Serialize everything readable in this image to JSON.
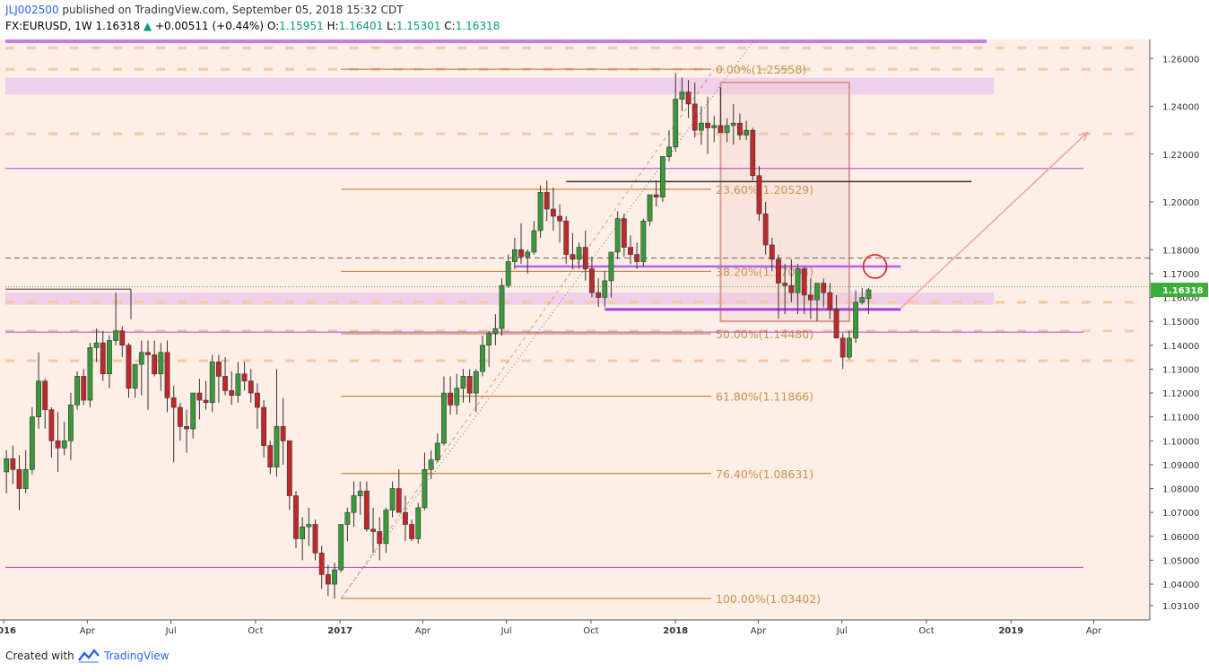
{
  "header": {
    "author": "JLJ002500",
    "published_text": "published on TradingView.com, September 05, 2018 15:32 CDT",
    "symbol": "FX:EURUSD, 1W",
    "last": "1.16318",
    "change": "+0.00511 (+0.44%)",
    "o_label": "O:",
    "o_value": "1.15951",
    "h_label": "H:",
    "h_value": "1.16401",
    "l_label": "L:",
    "l_value": "1.15301",
    "c_label": "C:",
    "c_value": "1.16318"
  },
  "footer": {
    "created_with": "Created with",
    "brand": "TradingView"
  },
  "colors": {
    "background": "#fdeee6",
    "up": "#3a9a3a",
    "down": "#c0282c",
    "fib": "#b8711e",
    "purple": "#b040d8",
    "accent": "#2962ff",
    "arrow": "#f4a0a0"
  },
  "chart_data": {
    "type": "candlestick",
    "symbol": "EURUSD",
    "timeframe": "1W",
    "ylim": [
      1.025,
      1.268
    ],
    "xlim": [
      "2015-12-28",
      "2019-06-01"
    ],
    "y_ticks": [
      "1.26000",
      "1.24000",
      "1.22000",
      "1.20000",
      "1.18000",
      "1.17000",
      "1.16000",
      "1.15000",
      "1.14000",
      "1.13000",
      "1.12000",
      "1.11000",
      "1.10000",
      "1.09000",
      "1.08000",
      "1.07000",
      "1.06000",
      "1.05000",
      "1.04000",
      "1.03100"
    ],
    "x_ticks": [
      {
        "date": "2016-01-01",
        "label": "2016",
        "bold": true
      },
      {
        "date": "2016-04-01",
        "label": "Apr",
        "bold": false
      },
      {
        "date": "2016-07-01",
        "label": "Jul",
        "bold": false
      },
      {
        "date": "2016-10-01",
        "label": "Oct",
        "bold": false
      },
      {
        "date": "2017-01-01",
        "label": "2017",
        "bold": true
      },
      {
        "date": "2017-04-01",
        "label": "Apr",
        "bold": false
      },
      {
        "date": "2017-07-01",
        "label": "Jul",
        "bold": false
      },
      {
        "date": "2017-10-01",
        "label": "Oct",
        "bold": false
      },
      {
        "date": "2018-01-01",
        "label": "2018",
        "bold": true
      },
      {
        "date": "2018-04-01",
        "label": "Apr",
        "bold": false
      },
      {
        "date": "2018-07-01",
        "label": "Jul",
        "bold": false
      },
      {
        "date": "2018-10-01",
        "label": "Oct",
        "bold": false
      },
      {
        "date": "2019-01-01",
        "label": "2019",
        "bold": true
      },
      {
        "date": "2019-04-01",
        "label": "Apr",
        "bold": false
      }
    ],
    "last_price": "1.16318",
    "candle_start": "2016-01-04",
    "candles": [
      [
        1.087,
        1.096,
        1.078,
        1.0925
      ],
      [
        1.0925,
        1.098,
        1.082,
        1.088
      ],
      [
        1.088,
        1.094,
        1.071,
        1.08
      ],
      [
        1.08,
        1.096,
        1.078,
        1.088
      ],
      [
        1.088,
        1.114,
        1.086,
        1.11
      ],
      [
        1.11,
        1.137,
        1.105,
        1.125
      ],
      [
        1.125,
        1.126,
        1.105,
        1.113
      ],
      [
        1.113,
        1.114,
        1.093,
        1.1
      ],
      [
        1.1,
        1.112,
        1.087,
        1.097
      ],
      [
        1.097,
        1.108,
        1.094,
        1.1
      ],
      [
        1.1,
        1.12,
        1.092,
        1.115
      ],
      [
        1.115,
        1.129,
        1.113,
        1.127
      ],
      [
        1.127,
        1.13,
        1.115,
        1.117
      ],
      [
        1.117,
        1.141,
        1.114,
        1.139
      ],
      [
        1.139,
        1.147,
        1.133,
        1.141
      ],
      [
        1.141,
        1.146,
        1.125,
        1.128
      ],
      [
        1.128,
        1.144,
        1.122,
        1.142
      ],
      [
        1.142,
        1.162,
        1.14,
        1.146
      ],
      [
        1.146,
        1.148,
        1.135,
        1.14
      ],
      [
        1.14,
        1.141,
        1.118,
        1.122
      ],
      [
        1.122,
        1.132,
        1.118,
        1.132
      ],
      [
        1.132,
        1.142,
        1.119,
        1.137
      ],
      [
        1.137,
        1.142,
        1.113,
        1.136
      ],
      [
        1.136,
        1.142,
        1.127,
        1.128
      ],
      [
        1.128,
        1.141,
        1.121,
        1.137
      ],
      [
        1.137,
        1.142,
        1.112,
        1.118
      ],
      [
        1.118,
        1.123,
        1.091,
        1.114
      ],
      [
        1.114,
        1.116,
        1.1,
        1.106
      ],
      [
        1.106,
        1.113,
        1.095,
        1.105
      ],
      [
        1.105,
        1.12,
        1.101,
        1.12
      ],
      [
        1.12,
        1.126,
        1.109,
        1.117
      ],
      [
        1.117,
        1.125,
        1.113,
        1.116
      ],
      [
        1.116,
        1.136,
        1.112,
        1.133
      ],
      [
        1.133,
        1.136,
        1.116,
        1.127
      ],
      [
        1.127,
        1.135,
        1.119,
        1.121
      ],
      [
        1.121,
        1.129,
        1.115,
        1.119
      ],
      [
        1.119,
        1.133,
        1.116,
        1.128
      ],
      [
        1.128,
        1.133,
        1.121,
        1.125
      ],
      [
        1.125,
        1.13,
        1.116,
        1.12
      ],
      [
        1.12,
        1.124,
        1.105,
        1.114
      ],
      [
        1.114,
        1.117,
        1.093,
        1.098
      ],
      [
        1.098,
        1.1,
        1.086,
        1.089
      ],
      [
        1.089,
        1.13,
        1.085,
        1.106
      ],
      [
        1.106,
        1.118,
        1.09,
        1.1
      ],
      [
        1.1,
        1.1,
        1.071,
        1.077
      ],
      [
        1.077,
        1.079,
        1.055,
        1.059
      ],
      [
        1.059,
        1.068,
        1.05,
        1.064
      ],
      [
        1.064,
        1.072,
        1.056,
        1.065
      ],
      [
        1.065,
        1.067,
        1.05,
        1.053
      ],
      [
        1.053,
        1.056,
        1.038,
        1.044
      ],
      [
        1.044,
        1.048,
        1.035,
        1.04
      ],
      [
        1.04,
        1.049,
        1.034,
        1.046
      ],
      [
        1.046,
        1.065,
        1.045,
        1.065
      ],
      [
        1.065,
        1.072,
        1.058,
        1.07
      ],
      [
        1.07,
        1.083,
        1.064,
        1.077
      ],
      [
        1.077,
        1.083,
        1.069,
        1.079
      ],
      [
        1.079,
        1.083,
        1.062,
        1.063
      ],
      [
        1.063,
        1.072,
        1.053,
        1.062
      ],
      [
        1.062,
        1.068,
        1.05,
        1.057
      ],
      [
        1.057,
        1.072,
        1.053,
        1.071
      ],
      [
        1.071,
        1.083,
        1.068,
        1.08
      ],
      [
        1.08,
        1.088,
        1.072,
        1.07
      ],
      [
        1.07,
        1.077,
        1.058,
        1.065
      ],
      [
        1.065,
        1.067,
        1.058,
        1.059
      ],
      [
        1.059,
        1.074,
        1.057,
        1.072
      ],
      [
        1.072,
        1.095,
        1.071,
        1.088
      ],
      [
        1.088,
        1.096,
        1.084,
        1.092
      ],
      [
        1.092,
        1.103,
        1.091,
        1.099
      ],
      [
        1.099,
        1.127,
        1.098,
        1.12
      ],
      [
        1.12,
        1.127,
        1.111,
        1.115
      ],
      [
        1.115,
        1.128,
        1.111,
        1.122
      ],
      [
        1.122,
        1.13,
        1.116,
        1.127
      ],
      [
        1.127,
        1.13,
        1.116,
        1.12
      ],
      [
        1.12,
        1.13,
        1.112,
        1.129
      ],
      [
        1.129,
        1.144,
        1.127,
        1.14
      ],
      [
        1.14,
        1.146,
        1.131,
        1.145
      ],
      [
        1.145,
        1.153,
        1.14,
        1.147
      ],
      [
        1.147,
        1.168,
        1.144,
        1.165
      ],
      [
        1.165,
        1.178,
        1.164,
        1.175
      ],
      [
        1.175,
        1.185,
        1.172,
        1.18
      ],
      [
        1.18,
        1.191,
        1.174,
        1.177
      ],
      [
        1.177,
        1.18,
        1.17,
        1.179
      ],
      [
        1.179,
        1.192,
        1.178,
        1.188
      ],
      [
        1.188,
        1.207,
        1.185,
        1.204
      ],
      [
        1.204,
        1.209,
        1.192,
        1.197
      ],
      [
        1.197,
        1.206,
        1.188,
        1.194
      ],
      [
        1.194,
        1.199,
        1.183,
        1.192
      ],
      [
        1.192,
        1.194,
        1.174,
        1.178
      ],
      [
        1.178,
        1.187,
        1.172,
        1.176
      ],
      [
        1.176,
        1.183,
        1.172,
        1.181
      ],
      [
        1.181,
        1.188,
        1.167,
        1.172
      ],
      [
        1.172,
        1.177,
        1.16,
        1.162
      ],
      [
        1.162,
        1.168,
        1.156,
        1.16
      ],
      [
        1.16,
        1.171,
        1.156,
        1.167
      ],
      [
        1.167,
        1.177,
        1.16,
        1.179
      ],
      [
        1.179,
        1.196,
        1.176,
        1.193
      ],
      [
        1.193,
        1.195,
        1.177,
        1.181
      ],
      [
        1.181,
        1.186,
        1.174,
        1.178
      ],
      [
        1.178,
        1.183,
        1.172,
        1.175
      ],
      [
        1.175,
        1.193,
        1.173,
        1.192
      ],
      [
        1.192,
        1.203,
        1.19,
        1.203
      ],
      [
        1.203,
        1.209,
        1.198,
        1.202
      ],
      [
        1.202,
        1.218,
        1.2,
        1.219
      ],
      [
        1.219,
        1.23,
        1.217,
        1.223
      ],
      [
        1.223,
        1.254,
        1.221,
        1.243
      ],
      [
        1.243,
        1.252,
        1.238,
        1.246
      ],
      [
        1.246,
        1.251,
        1.235,
        1.241
      ],
      [
        1.241,
        1.25,
        1.227,
        1.23
      ],
      [
        1.23,
        1.24,
        1.224,
        1.233
      ],
      [
        1.233,
        1.244,
        1.22,
        1.231
      ],
      [
        1.231,
        1.236,
        1.225,
        1.232
      ],
      [
        1.232,
        1.248,
        1.23,
        1.229
      ],
      [
        1.229,
        1.235,
        1.225,
        1.232
      ],
      [
        1.232,
        1.241,
        1.224,
        1.233
      ],
      [
        1.233,
        1.237,
        1.226,
        1.228
      ],
      [
        1.228,
        1.234,
        1.226,
        1.23
      ],
      [
        1.23,
        1.231,
        1.209,
        1.211
      ],
      [
        1.211,
        1.215,
        1.192,
        1.195
      ],
      [
        1.195,
        1.2,
        1.178,
        1.182
      ],
      [
        1.182,
        1.185,
        1.171,
        1.176
      ],
      [
        1.176,
        1.178,
        1.151,
        1.166
      ],
      [
        1.166,
        1.174,
        1.153,
        1.165
      ],
      [
        1.165,
        1.176,
        1.158,
        1.162
      ],
      [
        1.162,
        1.174,
        1.153,
        1.172
      ],
      [
        1.172,
        1.173,
        1.153,
        1.161
      ],
      [
        1.161,
        1.168,
        1.151,
        1.159
      ],
      [
        1.159,
        1.166,
        1.15,
        1.166
      ],
      [
        1.166,
        1.168,
        1.156,
        1.162
      ],
      [
        1.162,
        1.166,
        1.151,
        1.155
      ],
      [
        1.155,
        1.161,
        1.145,
        1.143
      ],
      [
        1.143,
        1.145,
        1.13,
        1.135
      ],
      [
        1.135,
        1.146,
        1.134,
        1.143
      ],
      [
        1.143,
        1.163,
        1.141,
        1.158
      ],
      [
        1.158,
        1.164,
        1.157,
        1.16
      ],
      [
        1.1595,
        1.164,
        1.153,
        1.1632
      ]
    ],
    "fib_levels": [
      {
        "value": 1.25558,
        "label": "0.00%(1.25558)"
      },
      {
        "value": 1.20529,
        "label": "23.60%(1.20529)"
      },
      {
        "value": 1.17094,
        "label": "38.20%(1.17094)"
      },
      {
        "value": 1.1448,
        "label": "50.00%(1.14480)"
      },
      {
        "value": 1.11866,
        "label": "61.80%(1.11866)"
      },
      {
        "value": 1.08631,
        "label": "76.40%(1.08631)"
      },
      {
        "value": 1.03402,
        "label": "100.00%(1.03402)"
      }
    ],
    "fib_start_date": "2017-01-02",
    "fib_end_date": "2018-02-12",
    "horizontal_lines": [
      {
        "value": 1.214,
        "style": "purple",
        "from": "2015-12-28"
      },
      {
        "value": 1.2085,
        "style": "dark",
        "from": "2017-09-04",
        "to": "2018-11-19"
      },
      {
        "value": 1.1765,
        "style": "dashed-gray",
        "from": "2015-12-28"
      },
      {
        "value": 1.1645,
        "style": "green-dotted",
        "from": "2015-12-28"
      },
      {
        "value": 1.1455,
        "style": "purple",
        "from": "2015-12-28"
      },
      {
        "value": 1.047,
        "style": "purple",
        "from": "2015-12-28"
      }
    ],
    "support_line_purple": {
      "value": 1.155,
      "from": "2017-10-16",
      "to": "2018-09-03"
    },
    "resistance_line_purple": {
      "value": 1.173,
      "from": "2017-07-10",
      "to": "2018-09-03"
    },
    "zones": [
      {
        "y1": 1.27,
        "y2": 1.2665,
        "color": "purple-strong"
      },
      {
        "y1": 1.252,
        "y2": 1.245,
        "color": "purple-light"
      },
      {
        "y1": 1.162,
        "y2": 1.157,
        "color": "purple-light"
      }
    ],
    "orange_dashed_levels": [
      1.2645,
      1.2555,
      1.2285,
      1.158,
      1.146,
      1.1335
    ],
    "box": {
      "from": "2018-02-19",
      "to": "2018-07-09",
      "top": 1.25,
      "bottom": 1.15
    },
    "circle": {
      "date": "2018-08-06",
      "value": 1.173
    },
    "arrow": {
      "from_date": "2018-09-03",
      "from_value": 1.1555,
      "to_date": "2019-03-25",
      "to_value": 1.229
    },
    "diagonal_dotted": {
      "from_date": "2017-01-02",
      "from_value": 1.034,
      "to_date": "2018-04-01",
      "to_value": 1.27
    }
  }
}
